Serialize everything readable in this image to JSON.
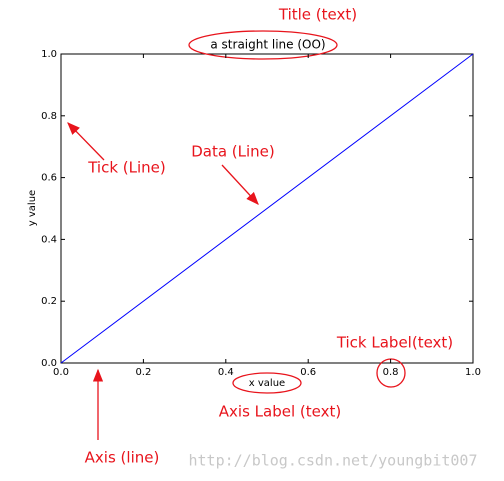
{
  "chart_data": {
    "type": "line",
    "title": "a straight line (OO)",
    "x_label": "x value",
    "y_label": "y value",
    "x": [
      0,
      1
    ],
    "values": [
      0,
      1
    ],
    "color": "#0000ff",
    "xlim": [
      0,
      1
    ],
    "ylim": [
      0,
      1
    ],
    "xticks": [
      {
        "value": 0,
        "label": "0.0"
      },
      {
        "value": 0.2,
        "label": "0.2"
      },
      {
        "value": 0.4,
        "label": "0.4"
      },
      {
        "value": 0.6,
        "label": "0.6"
      },
      {
        "value": 0.8,
        "label": "0.8"
      },
      {
        "value": 1,
        "label": "1.0"
      }
    ],
    "yticks": [
      {
        "value": 0,
        "label": "0.0"
      },
      {
        "value": 0.2,
        "label": "0.2"
      },
      {
        "value": 0.4,
        "label": "0.4"
      },
      {
        "value": 0.6,
        "label": "0.6"
      },
      {
        "value": 0.8,
        "label": "0.8"
      },
      {
        "value": 1,
        "label": "1.0"
      }
    ],
    "grid": false
  },
  "annotations": [
    "Title (text)",
    "Tick (Line)",
    "Data (Line)",
    "Tick Label(text)",
    "Axis Label (text)",
    "Axis (line)"
  ],
  "watermark": "http://blog.csdn.net/youngbit007"
}
